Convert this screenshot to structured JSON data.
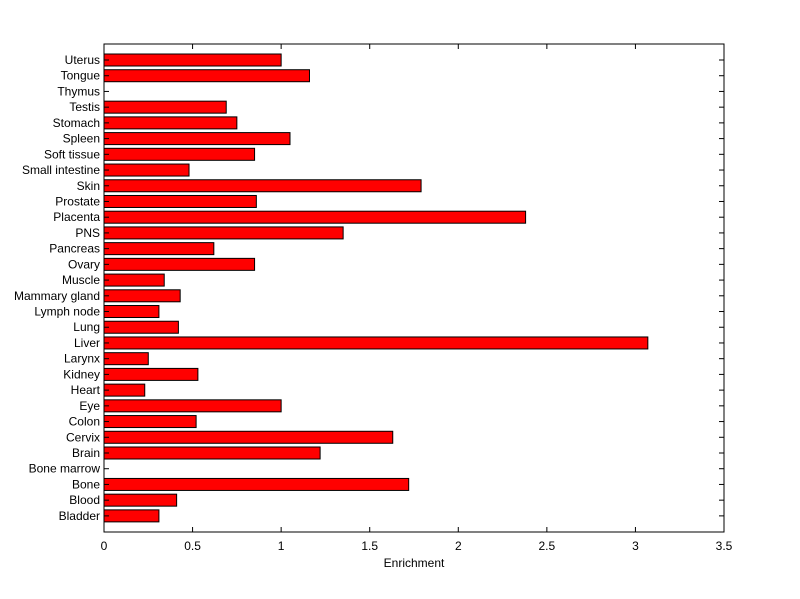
{
  "chart_data": {
    "type": "bar",
    "orientation": "horizontal",
    "xlabel": "Enrichment",
    "ylabel": "",
    "title": "",
    "xlim": [
      0,
      3.5
    ],
    "xticks": [
      0,
      0.5,
      1,
      1.5,
      2,
      2.5,
      3,
      3.5
    ],
    "xtick_labels": [
      "0",
      "0.5",
      "1",
      "1.5",
      "2",
      "2.5",
      "3",
      "3.5"
    ],
    "grid": false,
    "bar_color": "#ff0000",
    "categories": [
      "Uterus",
      "Tongue",
      "Thymus",
      "Testis",
      "Stomach",
      "Spleen",
      "Soft tissue",
      "Small intestine",
      "Skin",
      "Prostate",
      "Placenta",
      "PNS",
      "Pancreas",
      "Ovary",
      "Muscle",
      "Mammary gland",
      "Lymph node",
      "Lung",
      "Liver",
      "Larynx",
      "Kidney",
      "Heart",
      "Eye",
      "Colon",
      "Cervix",
      "Brain",
      "Bone marrow",
      "Bone",
      "Blood",
      "Bladder"
    ],
    "values": [
      1.0,
      1.16,
      0.0,
      0.69,
      0.75,
      1.05,
      0.85,
      0.48,
      1.79,
      0.86,
      2.38,
      1.35,
      0.62,
      0.85,
      0.34,
      0.43,
      0.31,
      0.42,
      3.07,
      0.25,
      0.53,
      0.23,
      1.0,
      0.52,
      1.63,
      1.22,
      0.0,
      1.72,
      0.41,
      0.31
    ]
  }
}
